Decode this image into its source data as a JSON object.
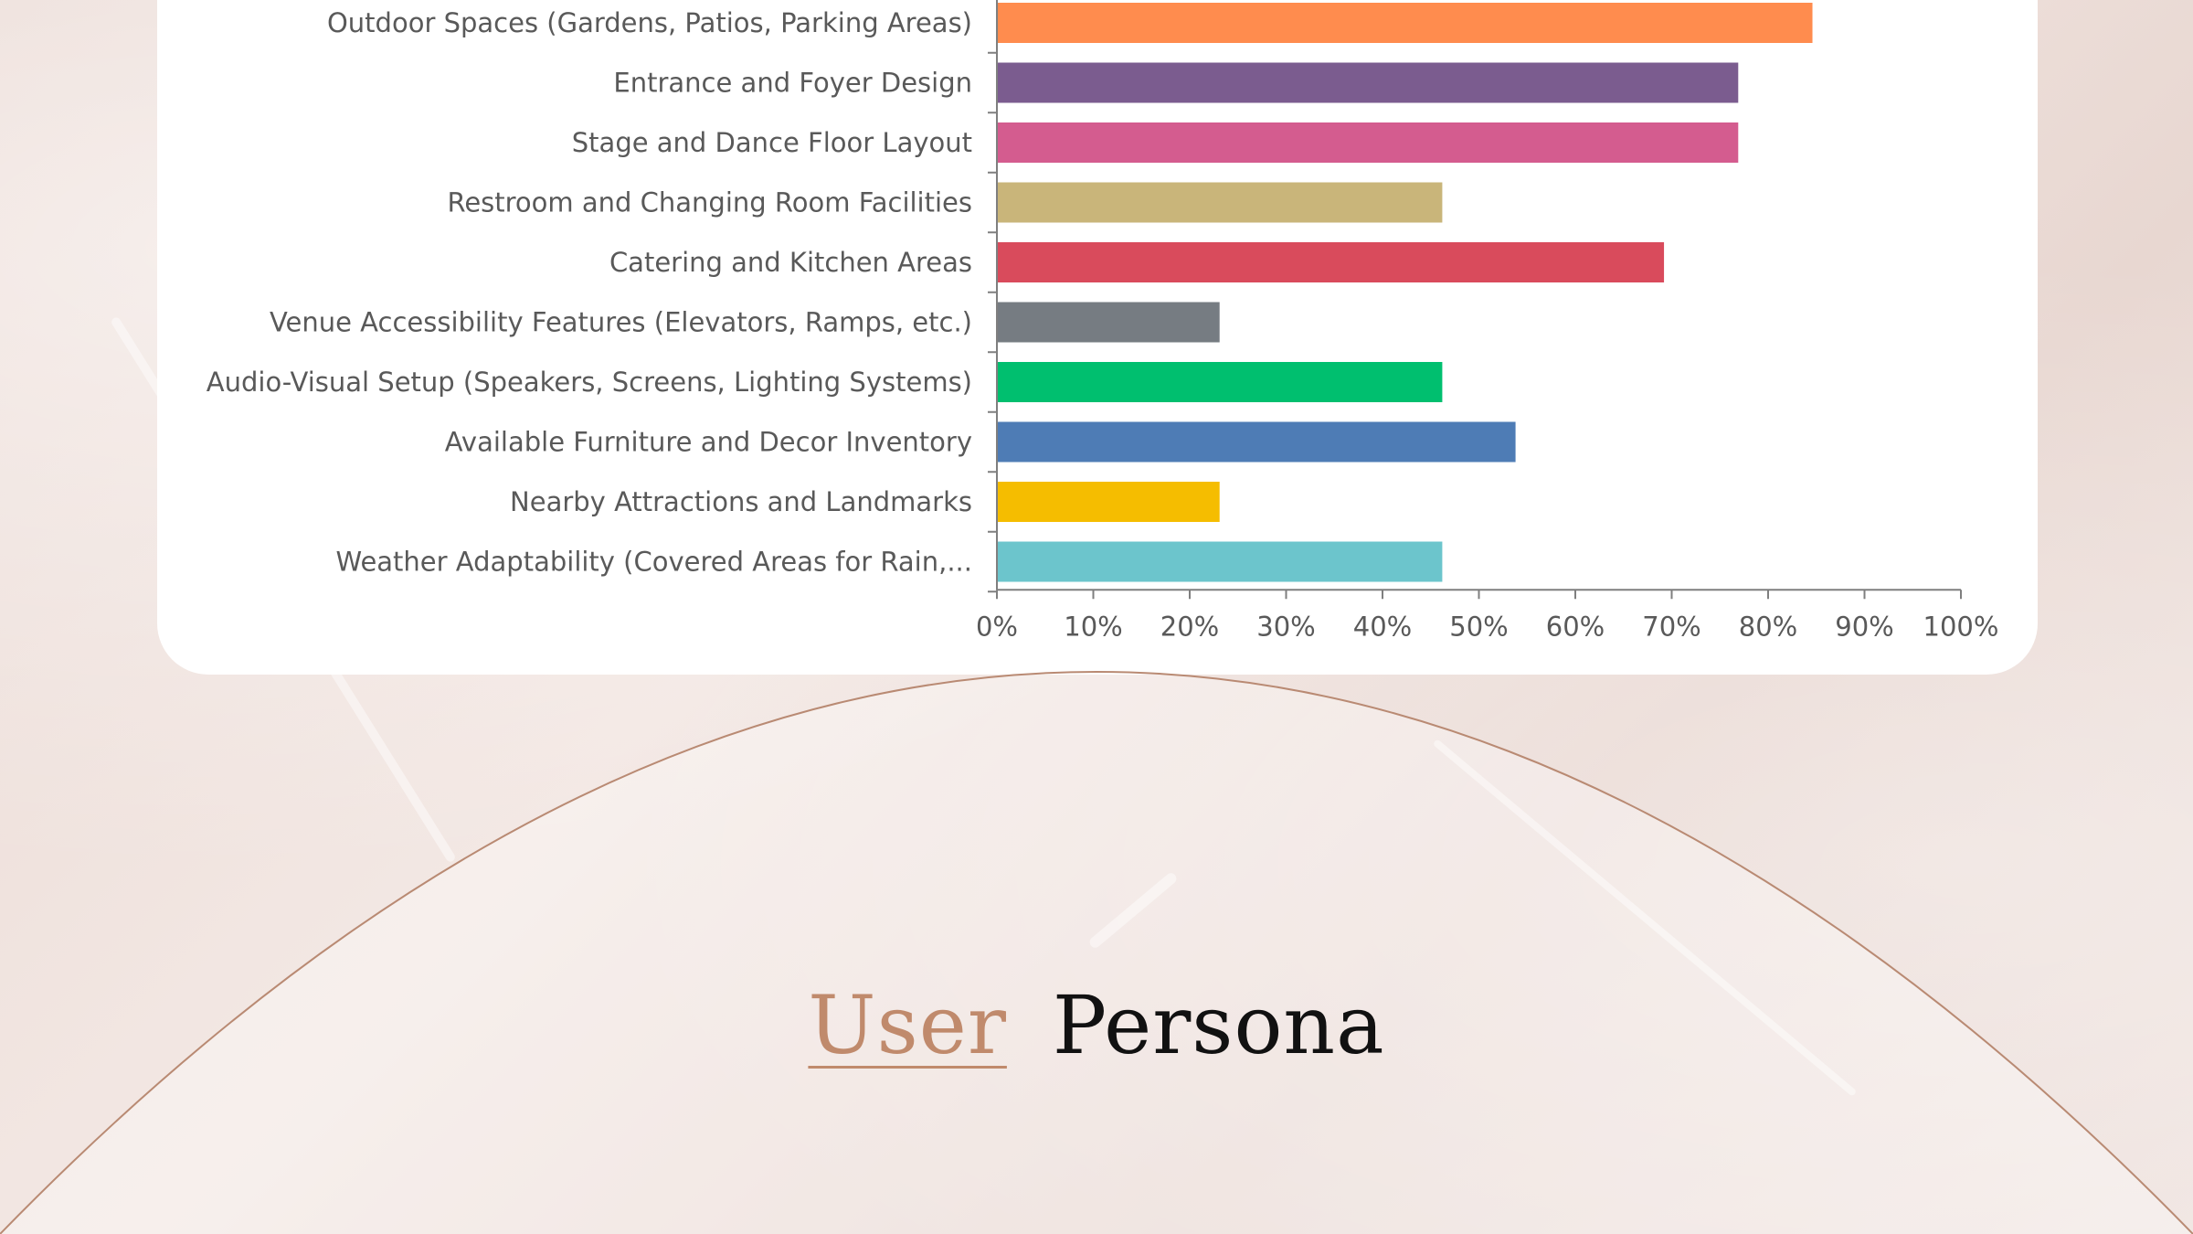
{
  "heading": {
    "word1": "User",
    "word2": "Persona"
  },
  "colors": {
    "accent": "#c08a6c",
    "card": "#ffffff",
    "axis": "#595959"
  },
  "chart_data": {
    "type": "bar",
    "orientation": "horizontal",
    "title": "",
    "xlabel": "",
    "ylabel": "",
    "xlim": [
      0,
      100
    ],
    "x_ticks": [
      "0%",
      "10%",
      "20%",
      "30%",
      "40%",
      "50%",
      "60%",
      "70%",
      "80%",
      "90%",
      "100%"
    ],
    "grid": false,
    "categories": [
      "Outdoor Spaces (Gardens, Patios, Parking Areas)",
      "Entrance and Foyer Design",
      "Stage and Dance Floor Layout",
      "Restroom and Changing Room Facilities",
      "Catering and Kitchen Areas",
      "Venue Accessibility Features (Elevators, Ramps, etc.)",
      "Audio-Visual Setup (Speakers, Screens, Lighting Systems)",
      "Available Furniture and Decor Inventory",
      "Nearby Attractions and Landmarks",
      "Weather Adaptability (Covered Areas for Rain,..."
    ],
    "values": [
      84.6,
      76.9,
      76.9,
      46.2,
      69.2,
      23.1,
      46.2,
      53.8,
      23.1,
      46.2
    ],
    "bar_colors": [
      "#ff8c4e",
      "#7b5c8f",
      "#d45c8f",
      "#c9b57a",
      "#d94b5c",
      "#767c82",
      "#00bf6f",
      "#4e7cb5",
      "#f5bd00",
      "#6cc5cc"
    ]
  }
}
